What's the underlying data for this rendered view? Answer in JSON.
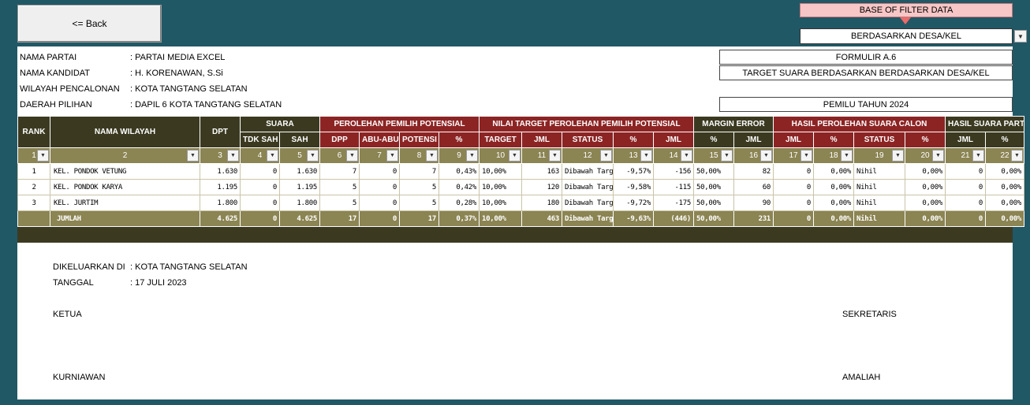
{
  "back_button": "<= Back",
  "filter": {
    "label": "BASE OF FILTER DATA",
    "selected": "BERDASARKAN DESA/KEL"
  },
  "info": [
    {
      "label": "NAMA PARTAI",
      "value": ": PARTAI MEDIA EXCEL"
    },
    {
      "label": "NAMA KANDIDAT",
      "value": ": H. KORENAWAN, S.Si"
    },
    {
      "label": "WILAYAH PENCALONAN",
      "value": ": KOTA TANGTANG SELATAN"
    },
    {
      "label": "DAERAH PILIHAN",
      "value": ": DAPIL 6 KOTA TANGTANG SELATAN"
    }
  ],
  "form": {
    "title": "FORMULIR A.6",
    "subtitle": "TARGET SUARA BERDASARKAN BERDASARKAN DESA/KEL",
    "election": "PEMILU TAHUN 2024"
  },
  "table": {
    "group_headers": {
      "rank": "RANK",
      "wilayah": "NAMA WILAYAH",
      "dpt": "DPT",
      "suara": "SUARA",
      "perolehan": "PEROLEHAN PEMILIH POTENSIAL",
      "nilai_target": "NILAI TARGET PEROLEHAN PEMILIH POTENSIAL",
      "margin": "MARGIN ERROR",
      "hasil_calon": "HASIL PEROLEHAN SUARA CALON",
      "hasil_partai": "HASIL SUARA PARTAI"
    },
    "sub_headers": [
      "TDK SAH",
      "SAH",
      "DPP",
      "ABU-ABU",
      "POTENSI",
      "%",
      "TARGET",
      "JML",
      "STATUS",
      "%",
      "JML",
      "%",
      "JML",
      "JML",
      "%",
      "STATUS",
      "%",
      "JML",
      "%"
    ],
    "col_numbers": [
      "1",
      "2",
      "3",
      "4",
      "5",
      "6",
      "7",
      "8",
      "9",
      "10",
      "11",
      "12",
      "13",
      "14",
      "15",
      "16",
      "17",
      "18",
      "19",
      "20",
      "21",
      "22"
    ],
    "rows": [
      [
        "1",
        "KEL. PONDOK VETUNG",
        "1.630",
        "0",
        "1.630",
        "7",
        "0",
        "7",
        "0,43%",
        "10,00%",
        "163",
        "Dibawah Target",
        "-9,57%",
        "-156",
        "50,00%",
        "82",
        "0",
        "0,00%",
        "Nihil",
        "0,00%",
        "0",
        "0,00%"
      ],
      [
        "2",
        "KEL. PONDOK KARYA",
        "1.195",
        "0",
        "1.195",
        "5",
        "0",
        "5",
        "0,42%",
        "10,00%",
        "120",
        "Dibawah Target",
        "-9,58%",
        "-115",
        "50,00%",
        "60",
        "0",
        "0,00%",
        "Nihil",
        "0,00%",
        "0",
        "0,00%"
      ],
      [
        "3",
        "KEL. JURTIM",
        "1.800",
        "0",
        "1.800",
        "5",
        "0",
        "5",
        "0,28%",
        "10,00%",
        "180",
        "Dibawah Target",
        "-9,72%",
        "-175",
        "50,00%",
        "90",
        "0",
        "0,00%",
        "Nihil",
        "0,00%",
        "0",
        "0,00%"
      ]
    ],
    "total": [
      "",
      "JUMLAH",
      "4.625",
      "0",
      "4.625",
      "17",
      "0",
      "17",
      "0,37%",
      "10,00%",
      "463",
      "Dibawah Target",
      "-9,63%",
      "(446)",
      "50,00%",
      "231",
      "0",
      "0,00%",
      "Nihil",
      "0,00%",
      "0",
      "0,00%"
    ]
  },
  "footer": {
    "issued_label": "DIKELUARKAN DI",
    "issued_value": ": KOTA TANGTANG SELATAN",
    "date_label": "TANGGAL",
    "date_value": ": 17 JULI 2023",
    "left_role": "KETUA",
    "left_name": "KURNIAWAN",
    "right_role": "SEKRETARIS",
    "right_name": "AMALIAH"
  },
  "colors": {
    "background": "#215866",
    "header_dark": "#3b3a21",
    "header_red": "#8c2424",
    "header_olive": "#8b8453",
    "filter_label_bg": "#f7c6c6"
  }
}
